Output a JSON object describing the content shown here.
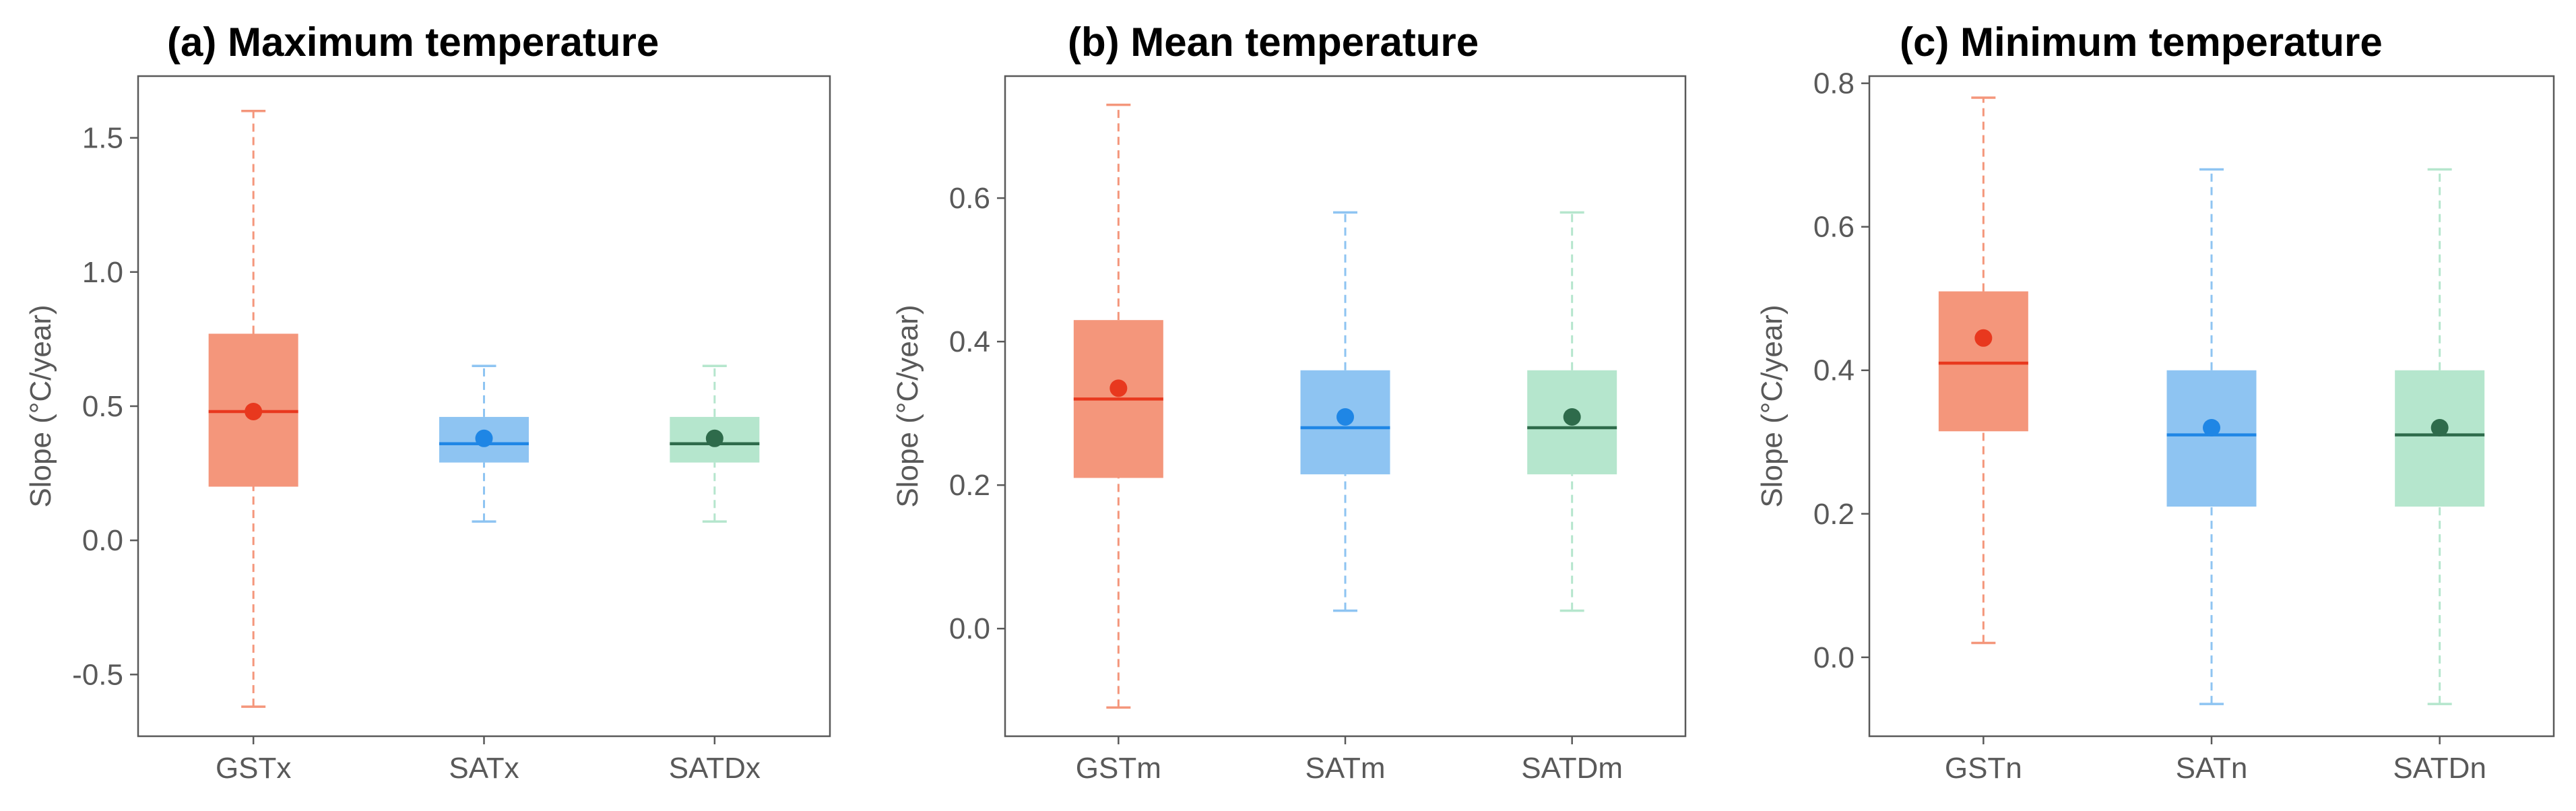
{
  "chart_data": [
    {
      "type": "box",
      "title": "(a) Maximum temperature",
      "ylabel": "Slope (°C/year)",
      "ylim": [
        -0.73,
        1.73
      ],
      "yticks": [
        -0.5,
        0.0,
        0.5,
        1.0,
        1.5
      ],
      "ytick_labels": [
        "-0.5",
        "0.0",
        "0.5",
        "1.0",
        "1.5"
      ],
      "grid": false,
      "legend": "none",
      "categories": [
        "GSTx",
        "SATx",
        "SATDx"
      ],
      "boxes": [
        {
          "category": "GSTx",
          "min": -0.62,
          "q1": 0.2,
          "median": 0.48,
          "q3": 0.77,
          "max": 1.6,
          "mean": 0.48
        },
        {
          "category": "SATx",
          "min": 0.07,
          "q1": 0.29,
          "median": 0.36,
          "q3": 0.46,
          "max": 0.65,
          "mean": 0.38
        },
        {
          "category": "SATDx",
          "min": 0.07,
          "q1": 0.29,
          "median": 0.36,
          "q3": 0.46,
          "max": 0.65,
          "mean": 0.38
        }
      ]
    },
    {
      "type": "box",
      "title": "(b) Mean temperature",
      "ylabel": "Slope (°C/year)",
      "ylim": [
        -0.15,
        0.77
      ],
      "yticks": [
        0.0,
        0.2,
        0.4,
        0.6
      ],
      "ytick_labels": [
        "0.0",
        "0.2",
        "0.4",
        "0.6"
      ],
      "grid": false,
      "legend": "none",
      "categories": [
        "GSTm",
        "SATm",
        "SATDm"
      ],
      "boxes": [
        {
          "category": "GSTm",
          "min": -0.11,
          "q1": 0.21,
          "median": 0.32,
          "q3": 0.43,
          "max": 0.73,
          "mean": 0.335
        },
        {
          "category": "SATm",
          "min": 0.025,
          "q1": 0.215,
          "median": 0.28,
          "q3": 0.36,
          "max": 0.58,
          "mean": 0.295
        },
        {
          "category": "SATDm",
          "min": 0.025,
          "q1": 0.215,
          "median": 0.28,
          "q3": 0.36,
          "max": 0.58,
          "mean": 0.295
        }
      ]
    },
    {
      "type": "box",
      "title": "(c) Minimum temperature",
      "ylabel": "Slope (°C/year)",
      "ylim": [
        -0.11,
        0.81
      ],
      "yticks": [
        0.0,
        0.2,
        0.4,
        0.6,
        0.8
      ],
      "ytick_labels": [
        "0.0",
        "0.2",
        "0.4",
        "0.6",
        "0.8"
      ],
      "grid": false,
      "legend": "none",
      "categories": [
        "GSTn",
        "SATn",
        "SATDn"
      ],
      "boxes": [
        {
          "category": "GSTn",
          "min": 0.02,
          "q1": 0.315,
          "median": 0.41,
          "q3": 0.51,
          "max": 0.78,
          "mean": 0.445
        },
        {
          "category": "SATn",
          "min": -0.065,
          "q1": 0.21,
          "median": 0.31,
          "q3": 0.4,
          "max": 0.68,
          "mean": 0.32
        },
        {
          "category": "SATDn",
          "min": -0.065,
          "q1": 0.21,
          "median": 0.31,
          "q3": 0.4,
          "max": 0.68,
          "mean": 0.32
        }
      ]
    }
  ],
  "style": {
    "colors": [
      {
        "box": "#f4967b",
        "whisker": "#f4967b",
        "median": "#e8381e",
        "mean": "#e8381e"
      },
      {
        "box": "#8ec4f2",
        "whisker": "#8ec4f2",
        "median": "#1f86e5",
        "mean": "#1f86e5"
      },
      {
        "box": "#b5e6cd",
        "whisker": "#b5e6cd",
        "median": "#2e6b4b",
        "mean": "#2e6b4b"
      }
    ],
    "axis_color": "#595959"
  }
}
